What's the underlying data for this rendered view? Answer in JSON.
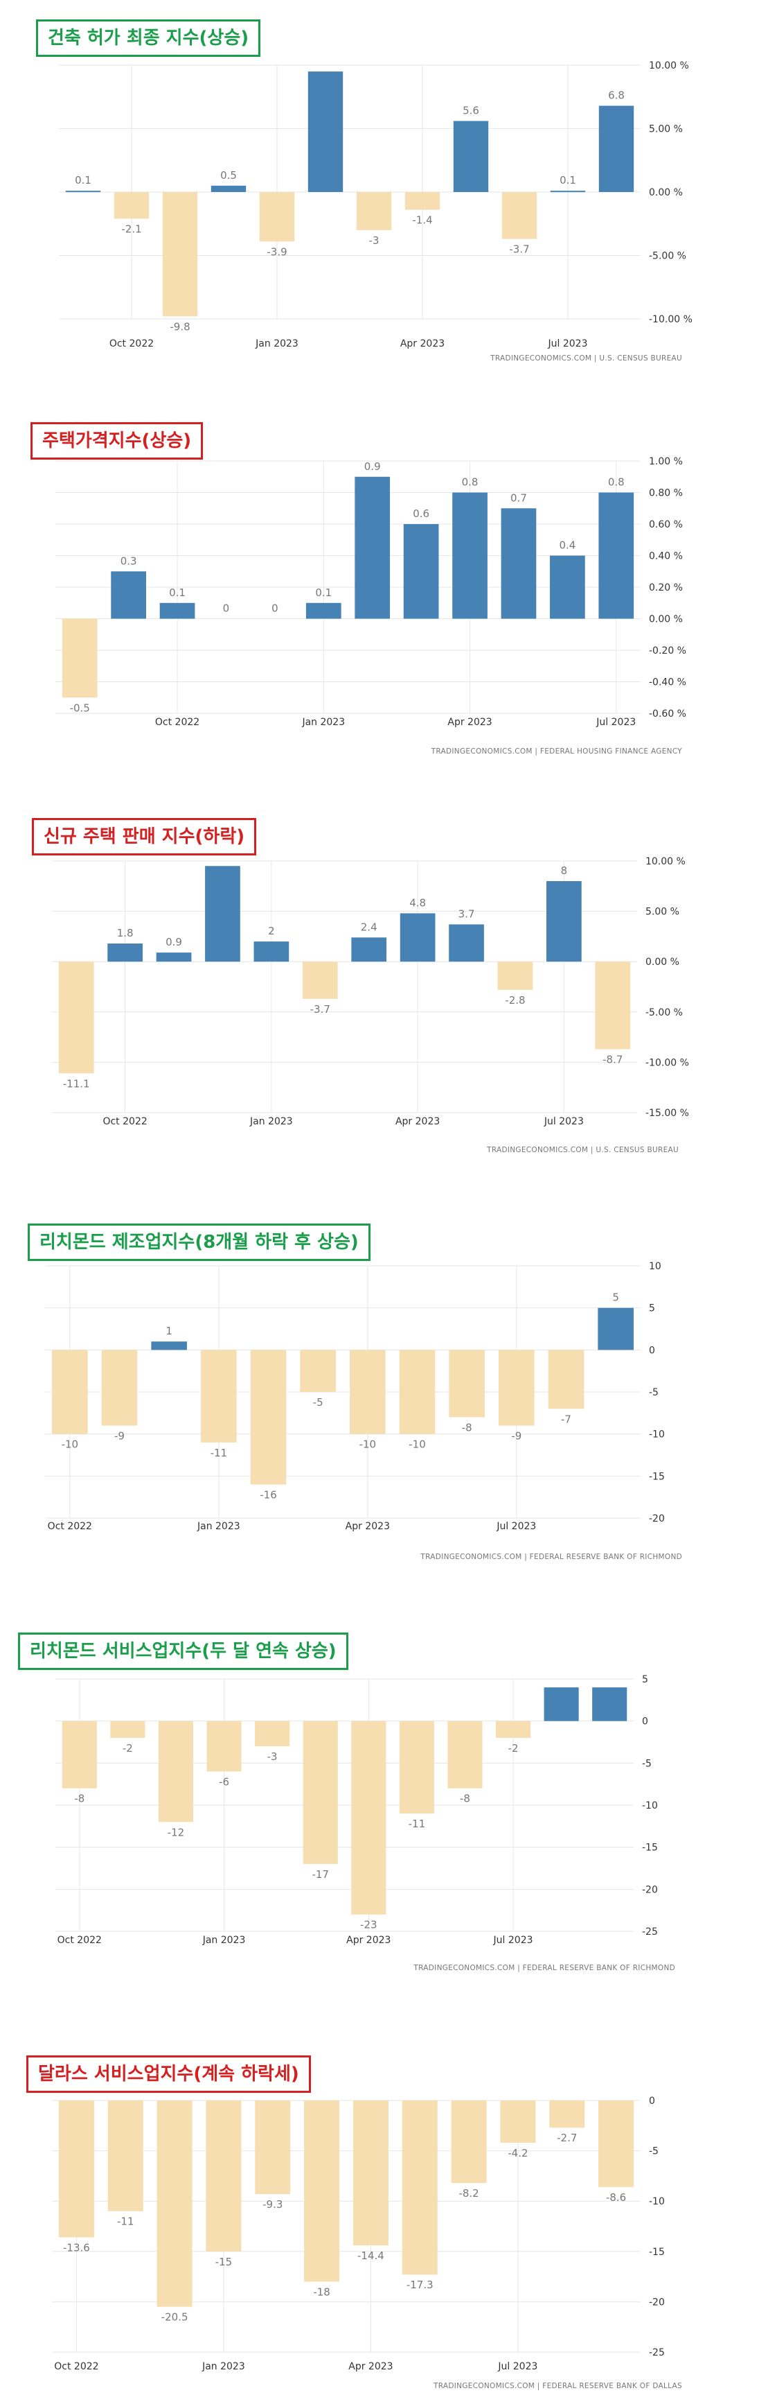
{
  "colors": {
    "positive": "#4682b4",
    "negative": "#f6deb0",
    "grid": "#e6e6e6",
    "title_green": "#1b9e4b",
    "title_red": "#d42020"
  },
  "charts": [
    {
      "title": "건축 허가 최종 지수(상승)",
      "title_color": "green",
      "source": "TRADINGECONOMICS.COM  |  U.S. CENSUS BUREAU",
      "chart_data": {
        "type": "bar",
        "values": [
          0.1,
          -2.1,
          -9.8,
          0.5,
          -3.9,
          9.5,
          -3.0,
          -1.4,
          5.6,
          -3.7,
          0.1,
          6.8
        ],
        "value_labels": [
          "0.1",
          "-2.1",
          "-9.8",
          "0.5",
          "-3.9",
          "",
          "-3",
          "-1.4",
          "5.6",
          "-3.7",
          "0.1",
          "6.8"
        ],
        "x_ticks": [
          {
            "index": 1,
            "label": "Oct 2022"
          },
          {
            "index": 4,
            "label": "Jan 2023"
          },
          {
            "index": 7,
            "label": "Apr 2023"
          },
          {
            "index": 10,
            "label": "Jul 2023"
          }
        ],
        "y_ticks": [
          {
            "v": 10,
            "label": "10.00 %"
          },
          {
            "v": 5,
            "label": "5.00 %"
          },
          {
            "v": 0,
            "label": "0.00 %"
          },
          {
            "v": -5,
            "label": "-5.00 %"
          },
          {
            "v": -10,
            "label": "-10.00 %"
          }
        ],
        "ylim": [
          -10,
          10
        ],
        "grid": true
      }
    },
    {
      "title": "주택가격지수(상승)",
      "title_color": "red",
      "source": "TRADINGECONOMICS.COM  |  FEDERAL HOUSING FINANCE AGENCY",
      "chart_data": {
        "type": "bar",
        "values": [
          -0.5,
          0.3,
          0.1,
          0,
          0,
          0.1,
          0.9,
          0.6,
          0.8,
          0.7,
          0.4,
          0.8
        ],
        "value_labels": [
          "-0.5",
          "0.3",
          "0.1",
          "0",
          "0",
          "0.1",
          "0.9",
          "0.6",
          "0.8",
          "0.7",
          "0.4",
          "0.8"
        ],
        "x_ticks": [
          {
            "index": 2,
            "label": "Oct 2022"
          },
          {
            "index": 5,
            "label": "Jan 2023"
          },
          {
            "index": 8,
            "label": "Apr 2023"
          },
          {
            "index": 11,
            "label": "Jul 2023"
          }
        ],
        "y_ticks": [
          {
            "v": 1,
            "label": "1.00 %"
          },
          {
            "v": 0.8,
            "label": "0.80 %"
          },
          {
            "v": 0.6,
            "label": "0.60 %"
          },
          {
            "v": 0.4,
            "label": "0.40 %"
          },
          {
            "v": 0.2,
            "label": "0.20 %"
          },
          {
            "v": 0,
            "label": "0.00 %"
          },
          {
            "v": -0.2,
            "label": "-0.20 %"
          },
          {
            "v": -0.4,
            "label": "-0.40 %"
          },
          {
            "v": -0.6,
            "label": "-0.60 %"
          }
        ],
        "ylim": [
          -0.6,
          1
        ],
        "grid": true
      }
    },
    {
      "title": "신규 주택 판매 지수(하락)",
      "title_color": "red",
      "source": "TRADINGECONOMICS.COM  |  U.S. CENSUS BUREAU",
      "chart_data": {
        "type": "bar",
        "values": [
          -11.1,
          1.8,
          0.9,
          9.5,
          2.0,
          -3.7,
          2.4,
          4.8,
          3.7,
          -2.8,
          8.0,
          -8.7
        ],
        "value_labels": [
          "-11.1",
          "1.8",
          "0.9",
          "",
          "2",
          "-3.7",
          "2.4",
          "4.8",
          "3.7",
          "-2.8",
          "8",
          "-8.7"
        ],
        "x_ticks": [
          {
            "index": 1,
            "label": "Oct 2022"
          },
          {
            "index": 4,
            "label": "Jan 2023"
          },
          {
            "index": 7,
            "label": "Apr 2023"
          },
          {
            "index": 10,
            "label": "Jul 2023"
          }
        ],
        "y_ticks": [
          {
            "v": 10,
            "label": "10.00 %"
          },
          {
            "v": 5,
            "label": "5.00 %"
          },
          {
            "v": 0,
            "label": "0.00 %"
          },
          {
            "v": -5,
            "label": "-5.00 %"
          },
          {
            "v": -10,
            "label": "-10.00 %"
          },
          {
            "v": -15,
            "label": "-15.00 %"
          }
        ],
        "ylim": [
          -15,
          10
        ],
        "grid": true
      }
    },
    {
      "title": "리치몬드 제조업지수(8개월 하락 후 상승)",
      "title_color": "green",
      "source": "TRADINGECONOMICS.COM  |  FEDERAL RESERVE BANK OF RICHMOND",
      "chart_data": {
        "type": "bar",
        "values": [
          -10,
          -9,
          1,
          -11,
          -16,
          -5,
          -10,
          -10,
          -8,
          -9,
          -7,
          5
        ],
        "value_labels": [
          "-10",
          "-9",
          "1",
          "-11",
          "-16",
          "-5",
          "-10",
          "-10",
          "-8",
          "-9",
          "-7",
          "5"
        ],
        "x_ticks": [
          {
            "index": 0,
            "label": "Oct 2022"
          },
          {
            "index": 3,
            "label": "Jan 2023"
          },
          {
            "index": 6,
            "label": "Apr 2023"
          },
          {
            "index": 9,
            "label": "Jul 2023"
          }
        ],
        "y_ticks": [
          {
            "v": 10,
            "label": "10"
          },
          {
            "v": 5,
            "label": "5"
          },
          {
            "v": 0,
            "label": "0"
          },
          {
            "v": -5,
            "label": "-5"
          },
          {
            "v": -10,
            "label": "-10"
          },
          {
            "v": -15,
            "label": "-15"
          },
          {
            "v": -20,
            "label": "-20"
          }
        ],
        "ylim": [
          -20,
          10
        ],
        "grid": true
      }
    },
    {
      "title": "리치몬드 서비스업지수(두 달 연속 상승)",
      "title_color": "green",
      "source": "TRADINGECONOMICS.COM  |  FEDERAL RESERVE BANK OF RICHMOND",
      "chart_data": {
        "type": "bar",
        "values": [
          -8,
          -2,
          -12,
          -6,
          -3,
          -17,
          -23,
          -11,
          -8,
          -2,
          4,
          4
        ],
        "value_labels": [
          "-8",
          "-2",
          "-12",
          "-6",
          "-3",
          "-17",
          "-23",
          "-11",
          "-8",
          "-2",
          "",
          ""
        ],
        "x_ticks": [
          {
            "index": 0,
            "label": "Oct 2022"
          },
          {
            "index": 3,
            "label": "Jan 2023"
          },
          {
            "index": 6,
            "label": "Apr 2023"
          },
          {
            "index": 9,
            "label": "Jul 2023"
          }
        ],
        "y_ticks": [
          {
            "v": 5,
            "label": "5"
          },
          {
            "v": 0,
            "label": "0"
          },
          {
            "v": -5,
            "label": "-5"
          },
          {
            "v": -10,
            "label": "-10"
          },
          {
            "v": -15,
            "label": "-15"
          },
          {
            "v": -20,
            "label": "-20"
          },
          {
            "v": -25,
            "label": "-25"
          }
        ],
        "ylim": [
          -25,
          5
        ],
        "grid": true
      }
    },
    {
      "title": "달라스 서비스업지수(계속 하락세)",
      "title_color": "red",
      "source": "TRADINGECONOMICS.COM  |  FEDERAL RESERVE BANK OF DALLAS",
      "chart_data": {
        "type": "bar",
        "values": [
          -13.6,
          -11,
          -20.5,
          -15,
          -9.3,
          -18,
          -14.4,
          -17.3,
          -8.2,
          -4.2,
          -2.7,
          -8.6
        ],
        "value_labels": [
          "-13.6",
          "-11",
          "-20.5",
          "-15",
          "-9.3",
          "-18",
          "-14.4",
          "-17.3",
          "-8.2",
          "-4.2",
          "-2.7",
          "-8.6"
        ],
        "x_ticks": [
          {
            "index": 0,
            "label": "Oct 2022"
          },
          {
            "index": 3,
            "label": "Jan 2023"
          },
          {
            "index": 6,
            "label": "Apr 2023"
          },
          {
            "index": 9,
            "label": "Jul 2023"
          }
        ],
        "y_ticks": [
          {
            "v": 0,
            "label": "0"
          },
          {
            "v": -5,
            "label": "-5"
          },
          {
            "v": -10,
            "label": "-10"
          },
          {
            "v": -15,
            "label": "-15"
          },
          {
            "v": -20,
            "label": "-20"
          },
          {
            "v": -25,
            "label": "-25"
          }
        ],
        "ylim": [
          -25,
          0
        ],
        "grid": true
      }
    }
  ]
}
